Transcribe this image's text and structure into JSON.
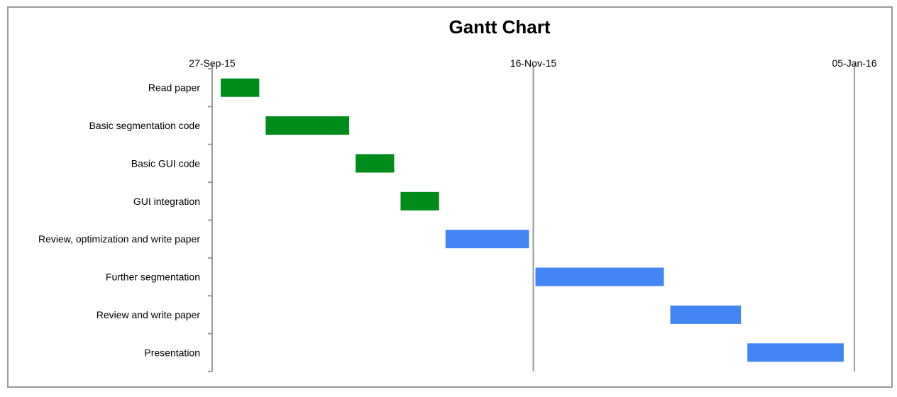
{
  "chart_data": {
    "type": "gantt",
    "title": "Gantt Chart",
    "xlabel": "",
    "ylabel": "",
    "x_axis": {
      "position": "top",
      "ticks": [
        "27-Sep-15",
        "16-Nov-15",
        "05-Jan-16"
      ],
      "range": [
        "27-Sep-15",
        "05-Jan-16"
      ]
    },
    "grid": "vertical lines at major ticks",
    "legend": "none",
    "colors": {
      "green": "#008c1a",
      "blue": "#4285f4",
      "axis": "#9a9a9a",
      "frame": "#9a9a9a"
    },
    "tasks": [
      {
        "name": "Read paper",
        "start": "28-Sep-15",
        "end": "04-Oct-15",
        "color": "green"
      },
      {
        "name": "Basic segmentation code",
        "start": "05-Oct-15",
        "end": "18-Oct-15",
        "color": "green"
      },
      {
        "name": "Basic GUI code",
        "start": "19-Oct-15",
        "end": "25-Oct-15",
        "color": "green"
      },
      {
        "name": "GUI integration",
        "start": "26-Oct-15",
        "end": "01-Nov-15",
        "color": "green"
      },
      {
        "name": "Review, optimization and write paper",
        "start": "02-Nov-15",
        "end": "15-Nov-15",
        "color": "blue"
      },
      {
        "name": "Further segmentation",
        "start": "16-Nov-15",
        "end": "06-Dec-15",
        "color": "blue"
      },
      {
        "name": "Review and write paper",
        "start": "07-Dec-15",
        "end": "18-Dec-15",
        "color": "blue"
      },
      {
        "name": "Presentation",
        "start": "19-Dec-15",
        "end": "03-Jan-16",
        "color": "blue"
      }
    ]
  }
}
